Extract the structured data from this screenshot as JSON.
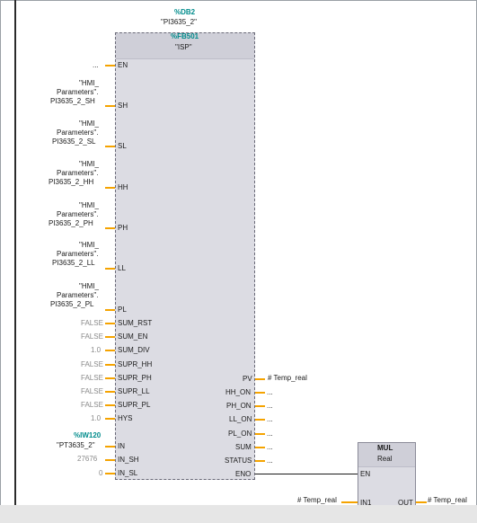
{
  "instance": {
    "db": "%DB2",
    "name": "\"PI3635_2\""
  },
  "block": {
    "fb": "%FB501",
    "name": "\"ISP\""
  },
  "inputs": {
    "en": {
      "label": "EN",
      "value": "..."
    },
    "sh": {
      "label": "SH",
      "line1": "\"HMI_",
      "line2": "Parameters\".",
      "line3": "PI3635_2_SH"
    },
    "sl": {
      "label": "SL",
      "line1": "\"HMI_",
      "line2": "Parameters\".",
      "line3": "PI3635_2_SL"
    },
    "hh": {
      "label": "HH",
      "line1": "\"HMI_",
      "line2": "Parameters\".",
      "line3": "PI3635_2_HH"
    },
    "ph": {
      "label": "PH",
      "line1": "\"HMI_",
      "line2": "Parameters\".",
      "line3": "PI3635_2_PH"
    },
    "ll": {
      "label": "LL",
      "line1": "\"HMI_",
      "line2": "Parameters\".",
      "line3": "PI3635_2_LL"
    },
    "pl": {
      "label": "PL",
      "line1": "\"HMI_",
      "line2": "Parameters\".",
      "line3": "PI3635_2_PL"
    },
    "sum_rst": {
      "label": "SUM_RST",
      "value": "FALSE"
    },
    "sum_en": {
      "label": "SUM_EN",
      "value": "FALSE"
    },
    "sum_div": {
      "label": "SUM_DIV",
      "value": "1.0"
    },
    "supr_hh": {
      "label": "SUPR_HH",
      "value": "FALSE"
    },
    "supr_ph": {
      "label": "SUPR_PH",
      "value": "FALSE"
    },
    "supr_ll": {
      "label": "SUPR_LL",
      "value": "FALSE"
    },
    "supr_pl": {
      "label": "SUPR_PL",
      "value": "FALSE"
    },
    "hys": {
      "label": "HYS",
      "value": "1.0"
    },
    "in": {
      "label": "IN",
      "address": "%IW120",
      "value": "\"PT3635_2\""
    },
    "in_sh": {
      "label": "IN_SH",
      "value": "27676"
    },
    "in_sl": {
      "label": "IN_SL",
      "value": "0"
    }
  },
  "outputs": {
    "pv": {
      "label": "PV",
      "value": "# Temp_real"
    },
    "hh_on": {
      "label": "HH_ON",
      "value": "..."
    },
    "ph_on": {
      "label": "PH_ON",
      "value": "..."
    },
    "ll_on": {
      "label": "LL_ON",
      "value": "..."
    },
    "pl_on": {
      "label": "PL_ON",
      "value": "..."
    },
    "sum": {
      "label": "SUM",
      "value": "..."
    },
    "status": {
      "label": "STATUS",
      "value": "..."
    },
    "eno": {
      "label": "ENO"
    }
  },
  "mul": {
    "title": "MUL",
    "type": "Real",
    "en": "EN",
    "in1": "IN1",
    "out": "OUT",
    "in1_value": "# Temp_real",
    "out_value": "# Temp_real"
  }
}
